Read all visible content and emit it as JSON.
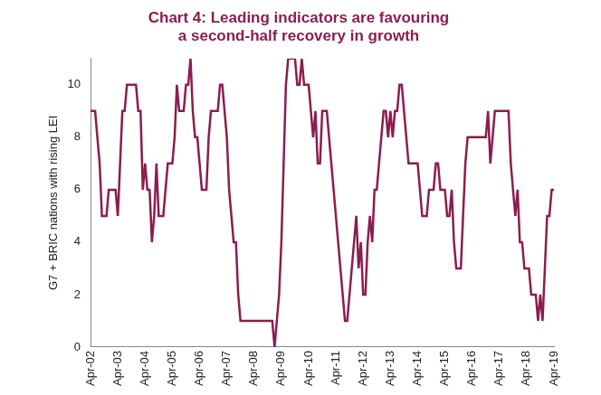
{
  "chart_data": {
    "type": "line",
    "title": [
      "Chart 4: Leading indicators are favouring",
      "a second-half recovery in growth"
    ],
    "y_label": "G7 + BRIC nations with rising LEI",
    "categories": [
      "Apr-02",
      null,
      null,
      null,
      null,
      null,
      null,
      null,
      null,
      null,
      null,
      null,
      "Apr-03",
      null,
      null,
      null,
      null,
      null,
      null,
      null,
      null,
      null,
      null,
      null,
      "Apr-04",
      null,
      null,
      null,
      null,
      null,
      null,
      null,
      null,
      null,
      null,
      null,
      "Apr-05",
      null,
      null,
      null,
      null,
      null,
      null,
      null,
      null,
      null,
      null,
      null,
      "Apr-06",
      null,
      null,
      null,
      null,
      null,
      null,
      null,
      null,
      null,
      null,
      null,
      "Apr-07",
      null,
      null,
      null,
      null,
      null,
      null,
      null,
      null,
      null,
      null,
      null,
      "Apr-08",
      null,
      null,
      null,
      null,
      null,
      null,
      null,
      null,
      null,
      null,
      null,
      "Apr-09",
      null,
      null,
      null,
      null,
      null,
      null,
      null,
      null,
      null,
      null,
      null,
      "Apr-10",
      null,
      null,
      null,
      null,
      null,
      null,
      null,
      null,
      null,
      null,
      null,
      "Apr-11",
      null,
      null,
      null,
      null,
      null,
      null,
      null,
      null,
      null,
      null,
      null,
      "Apr-12",
      null,
      null,
      null,
      null,
      null,
      null,
      null,
      null,
      null,
      null,
      null,
      "Apr-13",
      null,
      null,
      null,
      null,
      null,
      null,
      null,
      null,
      null,
      null,
      null,
      "Apr-14",
      null,
      null,
      null,
      null,
      null,
      null,
      null,
      null,
      null,
      null,
      null,
      "Apr-15",
      null,
      null,
      null,
      null,
      null,
      null,
      null,
      null,
      null,
      null,
      null,
      "Apr-16",
      null,
      null,
      null,
      null,
      null,
      null,
      null,
      null,
      null,
      null,
      null,
      "Apr-17",
      null,
      null,
      null,
      null,
      null,
      null,
      null,
      null,
      null,
      null,
      null,
      "Apr-18",
      null,
      null,
      null,
      null,
      null,
      null,
      null,
      null,
      null,
      null,
      null,
      "Apr-19"
    ],
    "values": [
      9,
      9,
      9,
      8,
      7,
      5,
      5,
      5,
      6,
      6,
      6,
      6,
      5,
      7,
      9,
      9,
      10,
      10,
      10,
      10,
      10,
      9,
      9,
      6,
      7,
      6,
      6,
      4,
      5,
      7,
      5,
      5,
      5,
      6,
      7,
      7,
      7,
      8,
      10,
      9,
      9,
      9,
      10,
      10,
      11,
      9,
      8,
      8,
      7,
      6,
      6,
      6,
      8,
      9,
      9,
      9,
      9,
      10,
      10,
      9,
      8,
      6,
      5,
      4,
      4,
      2,
      1,
      1,
      1,
      1,
      1,
      1,
      1,
      1,
      1,
      1,
      1,
      1,
      1,
      1,
      1,
      0,
      1,
      2,
      4,
      7,
      10,
      11,
      11,
      11,
      11,
      10,
      10,
      11,
      10,
      10,
      10,
      9,
      8,
      9,
      7,
      7,
      9,
      9,
      9,
      8,
      7,
      6,
      5,
      4,
      3,
      2,
      1,
      1,
      2,
      3,
      4,
      5,
      3,
      4,
      2,
      2,
      4,
      5,
      4,
      6,
      6,
      7,
      8,
      9,
      9,
      8,
      9,
      8,
      9,
      9,
      10,
      10,
      9,
      8,
      7,
      7,
      7,
      7,
      7,
      6,
      5,
      5,
      5,
      6,
      6,
      6,
      7,
      7,
      6,
      6,
      6,
      5,
      5,
      6,
      4,
      3,
      3,
      3,
      5,
      7,
      8,
      8,
      8,
      8,
      8,
      8,
      8,
      8,
      8,
      9,
      7,
      8,
      9,
      9,
      9,
      9,
      9,
      9,
      9,
      7,
      6,
      5,
      6,
      4,
      4,
      3,
      3,
      3,
      2,
      2,
      2,
      1,
      2,
      1,
      3,
      5,
      5,
      6,
      6
    ],
    "color": "#8c1d4f",
    "ylim": [
      0,
      11
    ],
    "yticks": [
      0,
      2,
      4,
      6,
      8,
      10
    ],
    "grid": false
  }
}
